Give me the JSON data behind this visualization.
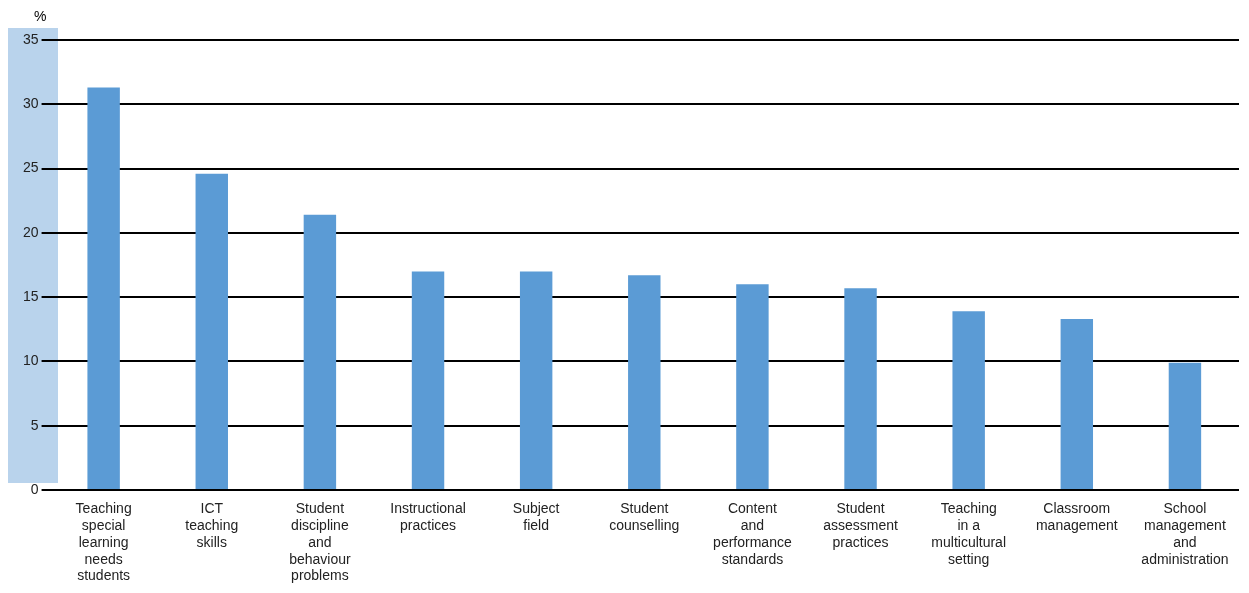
{
  "chart_data": {
    "type": "bar",
    "ylabel": "%",
    "categories": [
      "Teaching special learning needs students",
      "ICT teaching skills",
      "Student discipline and behaviour problems",
      "Instructional practices",
      "Subject field",
      "Student counselling",
      "Content and performance standards",
      "Student assessment practices",
      "Teaching in a multicultural setting",
      "Classroom management",
      "School management and administration"
    ],
    "values": [
      31.3,
      24.6,
      21.4,
      17.0,
      17.0,
      16.7,
      16.0,
      15.7,
      13.9,
      13.3,
      9.9
    ],
    "color": "#5b9bd5",
    "ylim": [
      0,
      35
    ],
    "yticks": [
      0,
      5,
      10,
      15,
      20,
      25,
      30,
      35
    ],
    "grid": "y"
  }
}
